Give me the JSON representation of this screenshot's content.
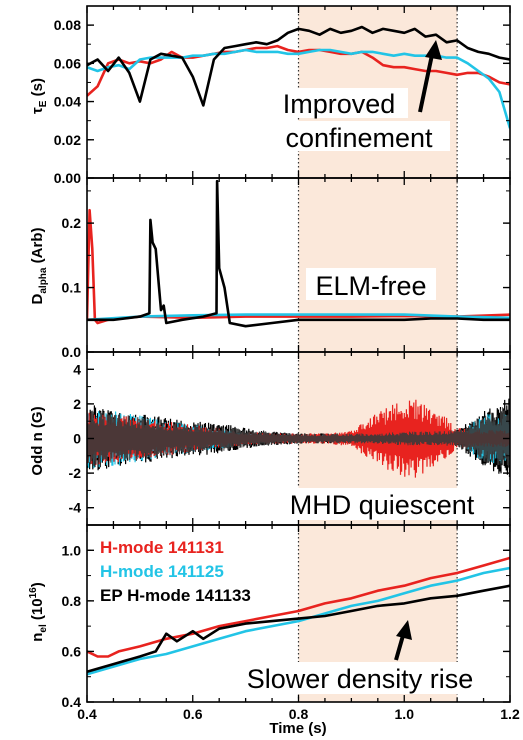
{
  "colors": {
    "red": "#e8231f",
    "cyan": "#22c4e6",
    "black": "#000000",
    "band": "#fbe8da"
  },
  "chart_data": {
    "type": "line",
    "x_axis": {
      "label": "Time (s)",
      "xlim": [
        0.4,
        1.2
      ],
      "ticks": [
        0.4,
        0.6,
        0.8,
        1.0,
        1.2
      ],
      "tick_labels": [
        "0.4",
        "0.6",
        "0.8",
        "1.0",
        "1.2"
      ]
    },
    "highlight_band": {
      "x_start": 0.8,
      "x_end": 1.1
    },
    "legend": [
      {
        "text": "H-mode 141131",
        "color": "red"
      },
      {
        "text": "H-mode 141125",
        "color": "cyan"
      },
      {
        "text": "EP H-mode 141133",
        "color": "black"
      }
    ],
    "panels": [
      {
        "id": "tau",
        "ylabel": "τ_E (s)",
        "ylabel_main": "τ",
        "ylabel_sub": "E",
        "ylabel_rest": " (s)",
        "ylim": [
          0.0,
          0.09
        ],
        "yticks": [
          0.0,
          0.02,
          0.04,
          0.06,
          0.08
        ],
        "ytick_labels": [
          "0.00",
          "0.02",
          "0.04",
          "0.06",
          "0.08"
        ],
        "annotation": [
          "Improved",
          "confinement"
        ],
        "series": [
          {
            "name": "H-mode 141131",
            "color": "red",
            "x": [
              0.4,
              0.42,
              0.44,
              0.46,
              0.48,
              0.5,
              0.52,
              0.54,
              0.56,
              0.58,
              0.6,
              0.62,
              0.64,
              0.66,
              0.68,
              0.7,
              0.72,
              0.74,
              0.76,
              0.78,
              0.8,
              0.82,
              0.84,
              0.86,
              0.88,
              0.9,
              0.92,
              0.94,
              0.96,
              0.98,
              1.0,
              1.02,
              1.04,
              1.06,
              1.08,
              1.1,
              1.12,
              1.14,
              1.16,
              1.18,
              1.2
            ],
            "y": [
              0.043,
              0.048,
              0.06,
              0.062,
              0.06,
              0.061,
              0.06,
              0.062,
              0.066,
              0.063,
              0.063,
              0.064,
              0.065,
              0.066,
              0.066,
              0.067,
              0.068,
              0.068,
              0.069,
              0.067,
              0.066,
              0.067,
              0.067,
              0.066,
              0.065,
              0.065,
              0.066,
              0.063,
              0.059,
              0.058,
              0.058,
              0.057,
              0.056,
              0.056,
              0.055,
              0.054,
              0.055,
              0.055,
              0.053,
              0.05,
              0.049
            ]
          },
          {
            "name": "H-mode 141125",
            "color": "cyan",
            "x": [
              0.4,
              0.42,
              0.44,
              0.46,
              0.48,
              0.5,
              0.52,
              0.54,
              0.56,
              0.58,
              0.6,
              0.62,
              0.64,
              0.66,
              0.68,
              0.7,
              0.72,
              0.74,
              0.76,
              0.78,
              0.8,
              0.82,
              0.84,
              0.86,
              0.88,
              0.9,
              0.92,
              0.94,
              0.96,
              0.98,
              1.0,
              1.02,
              1.04,
              1.06,
              1.08,
              1.1,
              1.12,
              1.14,
              1.16,
              1.18,
              1.2
            ],
            "y": [
              0.058,
              0.056,
              0.058,
              0.059,
              0.057,
              0.062,
              0.063,
              0.063,
              0.063,
              0.063,
              0.064,
              0.064,
              0.065,
              0.065,
              0.066,
              0.067,
              0.066,
              0.066,
              0.066,
              0.065,
              0.065,
              0.066,
              0.067,
              0.067,
              0.066,
              0.065,
              0.066,
              0.066,
              0.065,
              0.064,
              0.065,
              0.064,
              0.064,
              0.064,
              0.063,
              0.063,
              0.06,
              0.056,
              0.052,
              0.045,
              0.026
            ]
          },
          {
            "name": "EP H-mode 141133",
            "color": "black",
            "x": [
              0.4,
              0.42,
              0.44,
              0.46,
              0.48,
              0.5,
              0.52,
              0.54,
              0.56,
              0.58,
              0.6,
              0.62,
              0.64,
              0.66,
              0.68,
              0.7,
              0.72,
              0.74,
              0.76,
              0.78,
              0.8,
              0.82,
              0.84,
              0.86,
              0.88,
              0.9,
              0.92,
              0.94,
              0.96,
              0.98,
              1.0,
              1.02,
              1.04,
              1.06,
              1.08,
              1.1,
              1.12,
              1.14,
              1.16,
              1.18,
              1.2
            ],
            "y": [
              0.059,
              0.062,
              0.056,
              0.063,
              0.055,
              0.04,
              0.062,
              0.065,
              0.064,
              0.063,
              0.053,
              0.038,
              0.062,
              0.068,
              0.069,
              0.07,
              0.071,
              0.07,
              0.072,
              0.076,
              0.078,
              0.077,
              0.075,
              0.078,
              0.076,
              0.077,
              0.079,
              0.076,
              0.078,
              0.077,
              0.076,
              0.078,
              0.074,
              0.075,
              0.071,
              0.072,
              0.068,
              0.066,
              0.065,
              0.063,
              0.062
            ]
          }
        ]
      },
      {
        "id": "dalpha",
        "ylabel": "D_alpha (Arb)",
        "ylabel_main": "D",
        "ylabel_sub": "alpha",
        "ylabel_rest": " (Arb)",
        "ylim": [
          0.0,
          0.27
        ],
        "yticks": [
          0.0,
          0.1,
          0.2
        ],
        "ytick_labels": [
          "0.0",
          "0.1",
          "0.2"
        ],
        "annotation": [
          "ELM-free"
        ],
        "series": [
          {
            "name": "H-mode 141131",
            "color": "red",
            "x": [
              0.4,
              0.405,
              0.41,
              0.415,
              0.42,
              0.44,
              0.5,
              0.6,
              0.7,
              0.8,
              0.9,
              1.0,
              1.1,
              1.2
            ],
            "y": [
              0.05,
              0.22,
              0.16,
              0.05,
              0.045,
              0.05,
              0.055,
              0.053,
              0.055,
              0.055,
              0.055,
              0.056,
              0.055,
              0.058
            ]
          },
          {
            "name": "H-mode 141125",
            "color": "cyan",
            "x": [
              0.4,
              0.5,
              0.6,
              0.7,
              0.8,
              0.9,
              1.0,
              1.1,
              1.2
            ],
            "y": [
              0.05,
              0.055,
              0.057,
              0.058,
              0.058,
              0.058,
              0.058,
              0.055,
              0.053
            ]
          },
          {
            "name": "EP H-mode 141133",
            "color": "black",
            "x": [
              0.4,
              0.45,
              0.5,
              0.518,
              0.52,
              0.524,
              0.53,
              0.54,
              0.545,
              0.55,
              0.58,
              0.62,
              0.645,
              0.646,
              0.65,
              0.66,
              0.67,
              0.7,
              0.75,
              0.8,
              0.85,
              0.9,
              0.95,
              1.0,
              1.05,
              1.1,
              1.15,
              1.2
            ],
            "y": [
              0.05,
              0.05,
              0.055,
              0.06,
              0.205,
              0.17,
              0.16,
              0.065,
              0.072,
              0.045,
              0.05,
              0.055,
              0.06,
              0.265,
              0.13,
              0.1,
              0.045,
              0.04,
              0.045,
              0.05,
              0.05,
              0.05,
              0.05,
              0.05,
              0.052,
              0.052,
              0.05,
              0.05
            ]
          }
        ]
      },
      {
        "id": "oddn",
        "ylabel": "Odd n (G)",
        "ylim": [
          -5,
          5
        ],
        "yticks": [
          -4,
          -2,
          0,
          2,
          4
        ],
        "ytick_labels": [
          "-4",
          "-2",
          "0",
          "2",
          "4"
        ],
        "annotation": [
          "MHD quiescent"
        ],
        "oscillation_envelope": {
          "black": {
            "x": [
              0.4,
              0.45,
              0.5,
              0.55,
              0.6,
              0.65,
              0.7,
              0.75,
              0.8,
              0.85,
              0.9,
              0.95,
              1.0,
              1.05,
              1.1,
              1.15,
              1.2
            ],
            "amp": [
              2.0,
              1.7,
              1.5,
              1.2,
              1.0,
              0.9,
              0.6,
              0.4,
              0.3,
              0.3,
              0.3,
              0.3,
              0.4,
              0.4,
              0.5,
              1.6,
              2.4
            ]
          },
          "cyan": {
            "x": [
              0.4,
              0.45,
              0.5,
              0.55,
              0.6,
              0.65,
              0.7,
              0.75,
              0.8,
              0.85,
              0.9,
              0.95,
              1.0,
              1.05,
              1.1,
              1.15,
              1.2
            ],
            "amp": [
              1.8,
              1.6,
              1.4,
              1.0,
              0.8,
              0.6,
              0.3,
              0.2,
              0.2,
              0.2,
              0.2,
              0.2,
              0.2,
              0.2,
              0.3,
              1.4,
              1.5
            ]
          },
          "red": {
            "x": [
              0.4,
              0.45,
              0.5,
              0.55,
              0.6,
              0.65,
              0.7,
              0.75,
              0.8,
              0.85,
              0.9,
              0.95,
              1.0,
              1.02,
              1.05,
              1.08,
              1.1,
              1.15,
              1.2
            ],
            "amp": [
              1.6,
              1.4,
              1.2,
              1.0,
              0.8,
              0.6,
              0.4,
              0.3,
              0.3,
              0.3,
              0.5,
              1.5,
              2.4,
              2.3,
              1.8,
              1.2,
              0.6,
              0.5,
              0.5
            ]
          }
        }
      },
      {
        "id": "ne",
        "ylabel": "n_el (10^16)",
        "ylabel_main": "n",
        "ylabel_sub": "el",
        "ylabel_rest": " (10",
        "ylabel_sup": "16",
        "ylabel_end": ")",
        "ylim": [
          0.4,
          1.1
        ],
        "yticks": [
          0.4,
          0.6,
          0.8,
          1.0
        ],
        "ytick_labels": [
          "0.4",
          "0.6",
          "0.8",
          "1.0"
        ],
        "annotation": [
          "Slower density rise"
        ],
        "series": [
          {
            "name": "H-mode 141131",
            "color": "red",
            "x": [
              0.4,
              0.42,
              0.44,
              0.46,
              0.48,
              0.5,
              0.55,
              0.6,
              0.65,
              0.7,
              0.75,
              0.8,
              0.85,
              0.9,
              0.95,
              1.0,
              1.05,
              1.1,
              1.15,
              1.2
            ],
            "y": [
              0.6,
              0.58,
              0.58,
              0.6,
              0.61,
              0.62,
              0.65,
              0.67,
              0.7,
              0.72,
              0.74,
              0.76,
              0.79,
              0.81,
              0.84,
              0.86,
              0.89,
              0.91,
              0.94,
              0.97
            ]
          },
          {
            "name": "H-mode 141125",
            "color": "cyan",
            "x": [
              0.4,
              0.45,
              0.5,
              0.55,
              0.6,
              0.65,
              0.7,
              0.75,
              0.8,
              0.85,
              0.9,
              0.95,
              1.0,
              1.05,
              1.1,
              1.15,
              1.2
            ],
            "y": [
              0.51,
              0.54,
              0.57,
              0.59,
              0.62,
              0.65,
              0.68,
              0.7,
              0.72,
              0.75,
              0.78,
              0.8,
              0.83,
              0.86,
              0.88,
              0.91,
              0.93
            ]
          },
          {
            "name": "EP H-mode 141133",
            "color": "black",
            "x": [
              0.4,
              0.45,
              0.5,
              0.53,
              0.55,
              0.57,
              0.6,
              0.62,
              0.65,
              0.7,
              0.75,
              0.8,
              0.85,
              0.9,
              0.95,
              1.0,
              1.05,
              1.1,
              1.15,
              1.2
            ],
            "y": [
              0.52,
              0.55,
              0.58,
              0.6,
              0.67,
              0.64,
              0.68,
              0.65,
              0.69,
              0.71,
              0.72,
              0.73,
              0.74,
              0.76,
              0.78,
              0.79,
              0.81,
              0.82,
              0.84,
              0.86
            ]
          }
        ]
      }
    ]
  }
}
